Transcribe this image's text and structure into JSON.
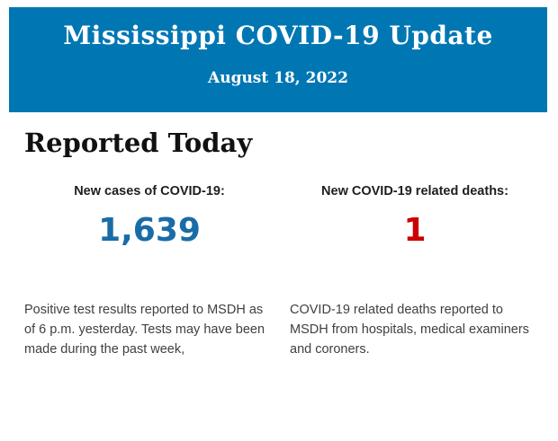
{
  "header": {
    "title": "Mississippi COVID-19 Update",
    "date": "August 18, 2022",
    "background_color": "#0077b3",
    "text_color": "#ffffff"
  },
  "section": {
    "heading": "Reported Today"
  },
  "stats": [
    {
      "label": "New cases of COVID-19:",
      "value": "1,639",
      "value_color": "#1a6ca8",
      "description": "Positive test results reported to MSDH as of 6 p.m. yesterday. Tests may have been made during the past week,"
    },
    {
      "label": "New COVID-19 related deaths:",
      "value": "1",
      "value_color": "#cc0000",
      "description": "COVID-19 related deaths reported to MSDH from hospitals, medical examiners and coroners."
    }
  ]
}
